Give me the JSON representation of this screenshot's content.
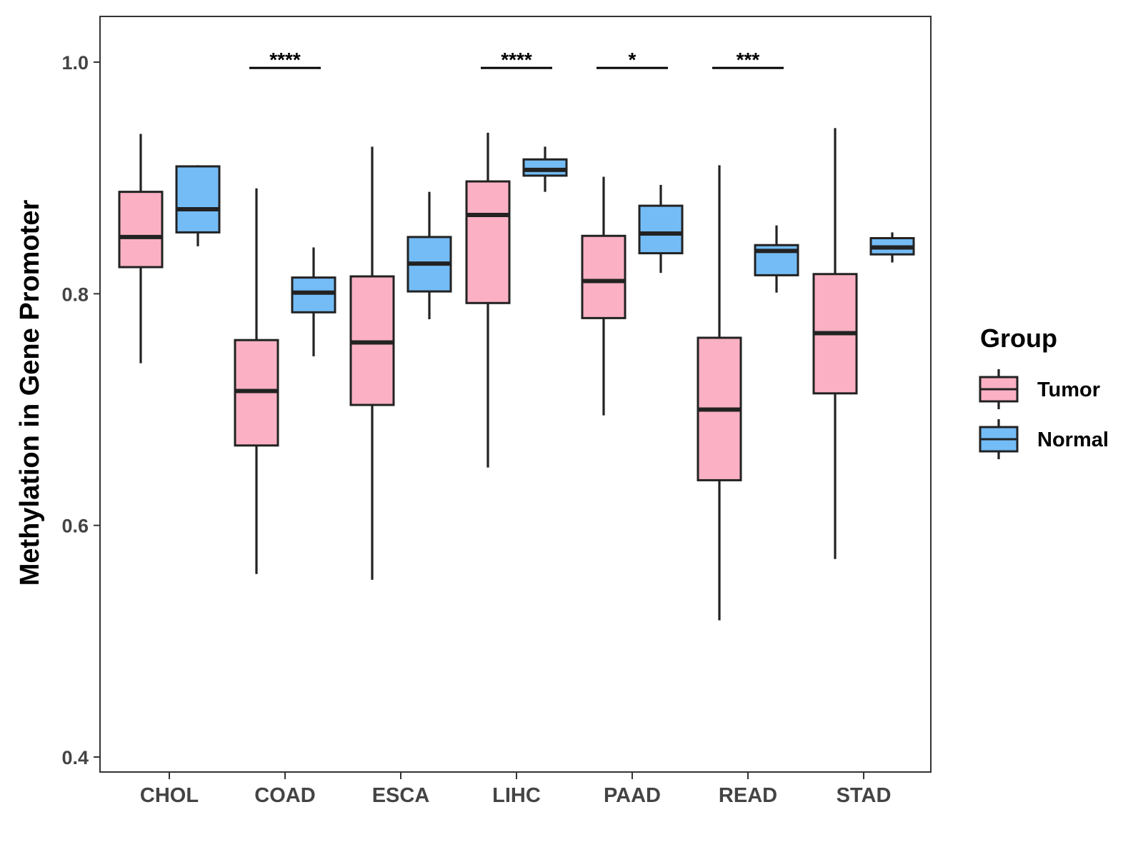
{
  "chart_data": {
    "type": "boxplot",
    "title": "",
    "xlabel": "",
    "ylabel": "Methylation in Gene Promoter",
    "ylim": [
      0.39,
      1.04
    ],
    "yticks": [
      0.4,
      0.6,
      0.8,
      1.0
    ],
    "ytick_labels": [
      "0.4",
      "0.6",
      "0.8",
      "1.0"
    ],
    "grid": false,
    "categories": [
      "CHOL",
      "COAD",
      "ESCA",
      "LIHC",
      "PAAD",
      "READ",
      "STAD"
    ],
    "legend": {
      "title": "Group",
      "position": "right",
      "entries": [
        {
          "name": "Tumor",
          "color": "#FBB1C3"
        },
        {
          "name": "Normal",
          "color": "#74BCF6"
        }
      ]
    },
    "series": [
      {
        "name": "Tumor",
        "color": "#FBB1C3",
        "boxes": [
          {
            "category": "CHOL",
            "min": 0.74,
            "q1": 0.823,
            "median": 0.849,
            "q3": 0.888,
            "max": 0.938
          },
          {
            "category": "COAD",
            "min": 0.558,
            "q1": 0.669,
            "median": 0.716,
            "q3": 0.76,
            "max": 0.891
          },
          {
            "category": "ESCA",
            "min": 0.553,
            "q1": 0.704,
            "median": 0.758,
            "q3": 0.815,
            "max": 0.927
          },
          {
            "category": "LIHC",
            "min": 0.65,
            "q1": 0.792,
            "median": 0.868,
            "q3": 0.897,
            "max": 0.939
          },
          {
            "category": "PAAD",
            "min": 0.695,
            "q1": 0.779,
            "median": 0.811,
            "q3": 0.85,
            "max": 0.901
          },
          {
            "category": "READ",
            "min": 0.518,
            "q1": 0.639,
            "median": 0.7,
            "q3": 0.762,
            "max": 0.911
          },
          {
            "category": "STAD",
            "min": 0.571,
            "q1": 0.714,
            "median": 0.766,
            "q3": 0.817,
            "max": 0.943
          }
        ]
      },
      {
        "name": "Normal",
        "color": "#74BCF6",
        "boxes": [
          {
            "category": "CHOL",
            "min": 0.841,
            "q1": 0.853,
            "median": 0.873,
            "q3": 0.91,
            "max": 0.911
          },
          {
            "category": "COAD",
            "min": 0.746,
            "q1": 0.784,
            "median": 0.801,
            "q3": 0.814,
            "max": 0.84
          },
          {
            "category": "ESCA",
            "min": 0.778,
            "q1": 0.802,
            "median": 0.826,
            "q3": 0.849,
            "max": 0.888
          },
          {
            "category": "LIHC",
            "min": 0.888,
            "q1": 0.902,
            "median": 0.907,
            "q3": 0.916,
            "max": 0.927
          },
          {
            "category": "PAAD",
            "min": 0.818,
            "q1": 0.835,
            "median": 0.852,
            "q3": 0.876,
            "max": 0.894
          },
          {
            "category": "READ",
            "min": 0.801,
            "q1": 0.816,
            "median": 0.837,
            "q3": 0.842,
            "max": 0.859
          },
          {
            "category": "STAD",
            "min": 0.827,
            "q1": 0.834,
            "median": 0.84,
            "q3": 0.848,
            "max": 0.853
          }
        ]
      }
    ],
    "significance": [
      {
        "category": "COAD",
        "label": "****",
        "y": 0.995
      },
      {
        "category": "LIHC",
        "label": "****",
        "y": 0.995
      },
      {
        "category": "PAAD",
        "label": "*",
        "y": 0.995
      },
      {
        "category": "READ",
        "label": "***",
        "y": 0.995
      }
    ]
  }
}
